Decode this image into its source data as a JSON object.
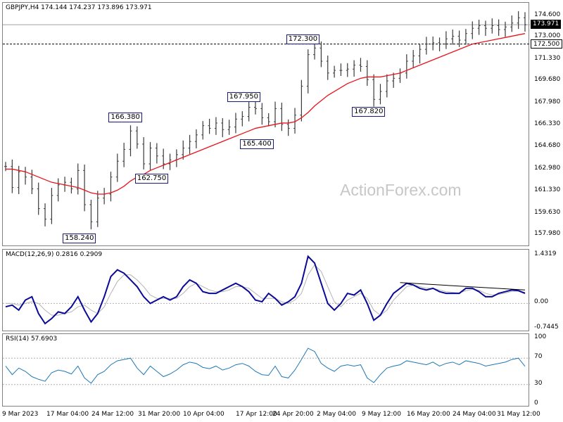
{
  "price_header": "GBPJPY,H4  174.144 174.237 173.896 173.971",
  "macd_header": "MACD(12,26,9) 0.2816 0.2909",
  "rsi_header": "RSI(14) 57.6903",
  "watermark": "ActionForex.com",
  "current_price_tag": "173.971",
  "level_tag": "172.500",
  "price_axis": [
    "174.600",
    "173.000",
    "171.330",
    "169.680",
    "167.980",
    "166.330",
    "164.680",
    "162.980",
    "161.330",
    "159.630",
    "157.980"
  ],
  "macd_axis": [
    "1.4319",
    "0.00",
    "-0.7445"
  ],
  "rsi_axis": [
    "100",
    "70",
    "30",
    "0"
  ],
  "x_axis": [
    "9 Mar 2023",
    "17 Mar 04:00",
    "24 Mar 12:00",
    "31 Mar 20:00",
    "10 Apr 04:00",
    "17 Apr 12:00",
    "24 Apr 20:00",
    "2 May 04:00",
    "9 May 12:00",
    "16 May 20:00",
    "24 May 04:00",
    "31 May 12:00"
  ],
  "colors": {
    "price_bars": "#3a3a3a",
    "moving_average": "#e8141b",
    "macd_line": "#0a0a96",
    "macd_signal": "#b4b4b4",
    "rsi_line": "#1e78b4",
    "box_border": "#1a1a7a"
  },
  "chart_data": [
    {
      "type": "line",
      "title": "GBPJPY,H4",
      "ylim": [
        157.2,
        175.1
      ],
      "horizontal_levels": [
        172.5,
        173.971
      ],
      "annotations": [
        {
          "label": "158.240",
          "x": 12,
          "y": 158.24
        },
        {
          "label": "162.750",
          "x": 23,
          "y": 162.75
        },
        {
          "label": "166.380",
          "x": 19,
          "y": 166.38
        },
        {
          "label": "167.950",
          "x": 37,
          "y": 167.95
        },
        {
          "label": "165.400",
          "x": 39,
          "y": 165.4
        },
        {
          "label": "172.300",
          "x": 46,
          "y": 172.3
        },
        {
          "label": "167.820",
          "x": 56,
          "y": 167.82
        }
      ],
      "x": [
        0,
        1,
        2,
        3,
        4,
        5,
        6,
        7,
        8,
        9,
        10,
        11,
        12,
        13,
        14,
        15,
        16,
        17,
        18,
        19,
        20,
        21,
        22,
        23,
        24,
        25,
        26,
        27,
        28,
        29,
        30,
        31,
        32,
        33,
        34,
        35,
        36,
        37,
        38,
        39,
        40,
        41,
        42,
        43,
        44,
        45,
        46,
        47,
        48,
        49,
        50,
        51,
        52,
        53,
        54,
        55,
        56,
        57,
        58,
        59,
        60,
        61,
        62,
        63,
        64,
        65,
        66,
        67,
        68,
        69,
        70,
        71,
        72,
        73,
        74,
        75,
        76,
        77,
        78,
        79
      ],
      "series": [
        {
          "name": "GBPJPY",
          "values": [
            163.2,
            161.6,
            162.8,
            162.4,
            161.5,
            160.0,
            159.2,
            161.0,
            161.8,
            162.0,
            161.5,
            162.9,
            160.3,
            159.0,
            160.8,
            161.1,
            162.4,
            163.6,
            164.5,
            165.9,
            164.9,
            163.4,
            164.6,
            164.0,
            163.4,
            163.7,
            164.1,
            164.6,
            165.1,
            165.6,
            166.3,
            166.1,
            166.5,
            166.0,
            166.2,
            166.8,
            167.0,
            167.7,
            167.6,
            166.9,
            166.6,
            167.6,
            166.4,
            166.1,
            167.1,
            169.3,
            171.7,
            172.2,
            171.2,
            170.3,
            170.5,
            170.5,
            170.6,
            170.9,
            170.8,
            169.8,
            168.3,
            168.9,
            169.7,
            169.9,
            170.3,
            171.2,
            171.6,
            172.1,
            172.5,
            172.6,
            172.5,
            172.9,
            173.1,
            172.8,
            173.3,
            173.7,
            173.9,
            173.7,
            173.9,
            173.6,
            173.8,
            174.1,
            174.5,
            173.97
          ]
        },
        {
          "name": "MA",
          "values": [
            163.0,
            163.0,
            162.9,
            162.8,
            162.6,
            162.4,
            162.2,
            162.0,
            161.9,
            161.8,
            161.7,
            161.6,
            161.4,
            161.2,
            161.1,
            161.1,
            161.2,
            161.4,
            161.7,
            162.1,
            162.4,
            162.6,
            162.9,
            163.1,
            163.3,
            163.5,
            163.7,
            163.9,
            164.1,
            164.3,
            164.5,
            164.7,
            164.9,
            165.1,
            165.3,
            165.5,
            165.7,
            165.9,
            166.1,
            166.2,
            166.3,
            166.4,
            166.5,
            166.5,
            166.6,
            166.9,
            167.3,
            167.8,
            168.2,
            168.6,
            168.9,
            169.2,
            169.5,
            169.7,
            169.9,
            170.0,
            170.0,
            170.0,
            170.1,
            170.2,
            170.3,
            170.5,
            170.7,
            170.9,
            171.1,
            171.3,
            171.5,
            171.7,
            171.9,
            172.1,
            172.3,
            172.5,
            172.6,
            172.7,
            172.8,
            172.9,
            173.0,
            173.1,
            173.2,
            173.3
          ]
        }
      ]
    },
    {
      "type": "line",
      "title": "MACD(12,26,9)",
      "ylim": [
        -0.7445,
        1.4319
      ],
      "trendline": {
        "from": [
          60,
          0.62
        ],
        "to": [
          79,
          0.4
        ]
      },
      "x": [
        0,
        1,
        2,
        3,
        4,
        5,
        6,
        7,
        8,
        9,
        10,
        11,
        12,
        13,
        14,
        15,
        16,
        17,
        18,
        19,
        20,
        21,
        22,
        23,
        24,
        25,
        26,
        27,
        28,
        29,
        30,
        31,
        32,
        33,
        34,
        35,
        36,
        37,
        38,
        39,
        40,
        41,
        42,
        43,
        44,
        45,
        46,
        47,
        48,
        49,
        50,
        51,
        52,
        53,
        54,
        55,
        56,
        57,
        58,
        59,
        60,
        61,
        62,
        63,
        64,
        65,
        66,
        67,
        68,
        69,
        70,
        71,
        72,
        73,
        74,
        75,
        76,
        77,
        78,
        79
      ],
      "series": [
        {
          "name": "MACD",
          "values": [
            -0.1,
            -0.05,
            -0.2,
            0.1,
            0.2,
            -0.3,
            -0.6,
            -0.45,
            -0.25,
            -0.3,
            -0.1,
            0.2,
            -0.2,
            -0.55,
            -0.3,
            0.2,
            0.8,
            1.0,
            0.9,
            0.7,
            0.5,
            0.2,
            0.0,
            0.1,
            0.2,
            0.1,
            0.2,
            0.5,
            0.7,
            0.6,
            0.35,
            0.3,
            0.3,
            0.4,
            0.5,
            0.6,
            0.5,
            0.35,
            0.1,
            0.05,
            0.3,
            0.15,
            -0.05,
            0.05,
            0.2,
            0.6,
            1.4,
            1.2,
            0.6,
            0.0,
            -0.2,
            0.0,
            0.3,
            0.25,
            0.4,
            0.0,
            -0.5,
            -0.35,
            0.0,
            0.3,
            0.45,
            0.6,
            0.55,
            0.45,
            0.4,
            0.45,
            0.35,
            0.3,
            0.3,
            0.3,
            0.45,
            0.45,
            0.35,
            0.2,
            0.2,
            0.3,
            0.35,
            0.4,
            0.38,
            0.3
          ]
        },
        {
          "name": "Signal",
          "values": [
            0.0,
            0.0,
            -0.05,
            0.0,
            0.05,
            0.0,
            -0.2,
            -0.35,
            -0.35,
            -0.3,
            -0.25,
            -0.1,
            -0.05,
            -0.2,
            -0.3,
            -0.1,
            0.3,
            0.65,
            0.85,
            0.85,
            0.7,
            0.5,
            0.25,
            0.15,
            0.15,
            0.15,
            0.15,
            0.3,
            0.5,
            0.6,
            0.5,
            0.4,
            0.35,
            0.35,
            0.4,
            0.5,
            0.5,
            0.45,
            0.3,
            0.15,
            0.15,
            0.15,
            0.05,
            0.0,
            0.1,
            0.3,
            0.85,
            1.15,
            0.95,
            0.5,
            0.05,
            -0.1,
            0.1,
            0.2,
            0.3,
            0.15,
            -0.2,
            -0.35,
            -0.2,
            0.1,
            0.3,
            0.5,
            0.55,
            0.5,
            0.45,
            0.45,
            0.4,
            0.35,
            0.33,
            0.31,
            0.38,
            0.42,
            0.39,
            0.3,
            0.25,
            0.27,
            0.31,
            0.36,
            0.37,
            0.33
          ]
        }
      ]
    },
    {
      "type": "line",
      "title": "RSI(14)",
      "ylim": [
        0,
        100
      ],
      "levels": [
        70,
        30
      ],
      "x": [
        0,
        1,
        2,
        3,
        4,
        5,
        6,
        7,
        8,
        9,
        10,
        11,
        12,
        13,
        14,
        15,
        16,
        17,
        18,
        19,
        20,
        21,
        22,
        23,
        24,
        25,
        26,
        27,
        28,
        29,
        30,
        31,
        32,
        33,
        34,
        35,
        36,
        37,
        38,
        39,
        40,
        41,
        42,
        43,
        44,
        45,
        46,
        47,
        48,
        49,
        50,
        51,
        52,
        53,
        54,
        55,
        56,
        57,
        58,
        59,
        60,
        61,
        62,
        63,
        64,
        65,
        66,
        67,
        68,
        69,
        70,
        71,
        72,
        73,
        74,
        75,
        76,
        77,
        78,
        79
      ],
      "series": [
        {
          "name": "RSI",
          "values": [
            58,
            45,
            55,
            50,
            42,
            38,
            35,
            48,
            52,
            50,
            46,
            58,
            40,
            32,
            45,
            50,
            60,
            66,
            68,
            70,
            55,
            45,
            58,
            50,
            42,
            46,
            52,
            60,
            64,
            62,
            56,
            54,
            58,
            52,
            55,
            60,
            62,
            58,
            50,
            45,
            44,
            58,
            42,
            40,
            52,
            68,
            85,
            80,
            62,
            55,
            50,
            58,
            60,
            58,
            60,
            40,
            33,
            45,
            55,
            58,
            60,
            66,
            64,
            62,
            60,
            64,
            58,
            62,
            64,
            60,
            66,
            64,
            62,
            58,
            60,
            62,
            64,
            68,
            70,
            57.69
          ]
        }
      ]
    }
  ]
}
